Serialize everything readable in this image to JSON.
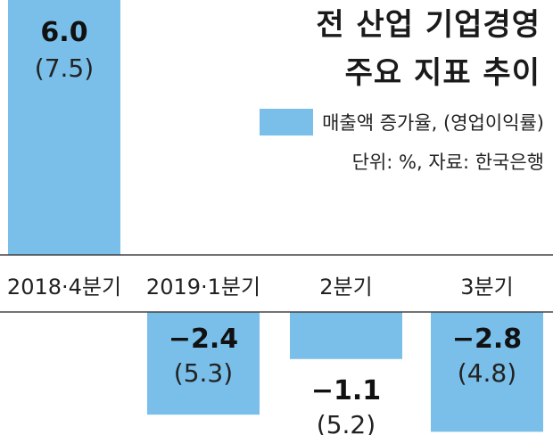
{
  "chart_data": {
    "type": "bar",
    "title": "전 산업 기업경영",
    "subtitle": "주요 지표 추이",
    "legend": "매출액 증가율, (영업이익률)",
    "source": "단위: %, 자료: 한국은행",
    "categories": [
      "2018·4분기",
      "2019·1분기",
      "2분기",
      "3분기"
    ],
    "values": [
      6.0,
      -2.4,
      -1.1,
      -2.8
    ],
    "value_labels": [
      "6.0",
      "−2.4",
      "−1.1",
      "−2.8"
    ],
    "secondary_labels": [
      "(7.5)",
      "(5.3)",
      "(5.2)",
      "(4.8)"
    ],
    "bar_color": "#79bfe9",
    "axis_color": "#444444"
  }
}
